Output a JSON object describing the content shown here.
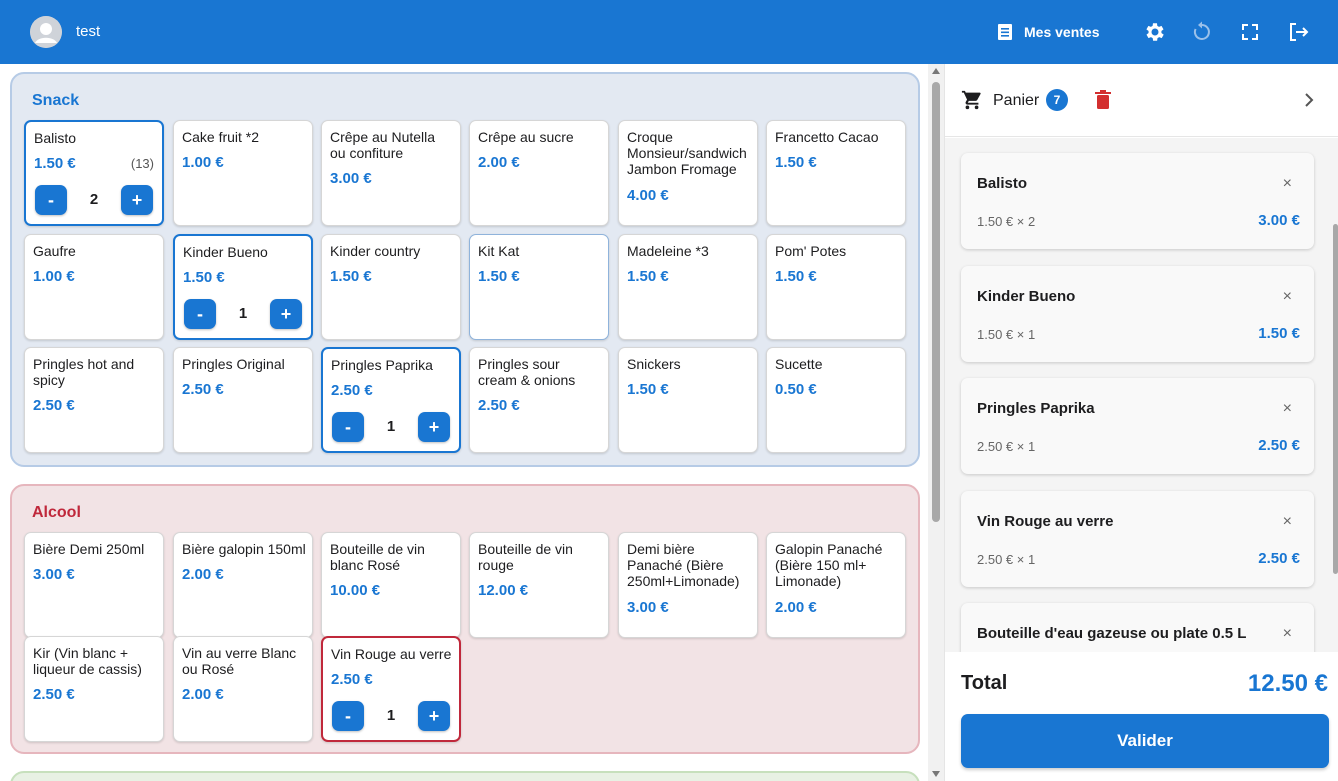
{
  "header": {
    "username": "test",
    "sales_label": "Mes ventes"
  },
  "sections": {
    "snack": {
      "title": "Snack",
      "products": [
        {
          "name": "Balisto",
          "price": "1.50 €",
          "stock": "(13)",
          "qty": "2"
        },
        {
          "name": "Cake fruit *2",
          "price": "1.00 €"
        },
        {
          "name": "Crêpe au Nutella ou confiture",
          "price": "3.00 €"
        },
        {
          "name": "Crêpe au sucre",
          "price": "2.00 €"
        },
        {
          "name": "Croque Monsieur/sandwich Jambon Fromage",
          "price": "4.00 €"
        },
        {
          "name": "Francetto Cacao",
          "price": "1.50 €"
        },
        {
          "name": "Gaufre",
          "price": "1.00 €"
        },
        {
          "name": "Kinder Bueno",
          "price": "1.50 €",
          "qty": "1"
        },
        {
          "name": "Kinder country",
          "price": "1.50 €"
        },
        {
          "name": "Kit Kat",
          "price": "1.50 €"
        },
        {
          "name": "Madeleine *3",
          "price": "1.50 €"
        },
        {
          "name": "Pom' Potes",
          "price": "1.50 €"
        },
        {
          "name": "Pringles hot and spicy",
          "price": "2.50 €"
        },
        {
          "name": "Pringles Original",
          "price": "2.50 €"
        },
        {
          "name": "Pringles Paprika",
          "price": "2.50 €",
          "qty": "1"
        },
        {
          "name": "Pringles sour cream & onions",
          "price": "2.50 €"
        },
        {
          "name": "Snickers",
          "price": "1.50 €"
        },
        {
          "name": "Sucette",
          "price": "0.50 €"
        }
      ]
    },
    "alcool": {
      "title": "Alcool",
      "products": [
        {
          "name": "Bière Demi 250ml",
          "price": "3.00 €"
        },
        {
          "name": "Bière galopin 150ml",
          "price": "2.00 €"
        },
        {
          "name": "Bouteille de vin blanc Rosé",
          "price": "10.00 €"
        },
        {
          "name": "Bouteille de vin rouge",
          "price": "12.00 €"
        },
        {
          "name": "Demi bière Panaché (Bière 250ml+Limonade)",
          "price": "3.00 €"
        },
        {
          "name": "Galopin Panaché (Bière 150 ml+ Limonade)",
          "price": "2.00 €"
        },
        {
          "name": "Kir (Vin blanc + liqueur de cassis)",
          "price": "2.50 €"
        },
        {
          "name": "Vin au verre Blanc ou Rosé",
          "price": "2.00 €"
        },
        {
          "name": "Vin Rouge au verre",
          "price": "2.50 €",
          "qty": "1"
        }
      ]
    }
  },
  "controls": {
    "minus": "-",
    "plus": "+"
  },
  "cart": {
    "title": "Panier",
    "count": "7",
    "items": [
      {
        "name": "Balisto",
        "unit": "1.50 € × 2",
        "total": "3.00 €"
      },
      {
        "name": "Kinder Bueno",
        "unit": "1.50 € × 1",
        "total": "1.50 €"
      },
      {
        "name": "Pringles Paprika",
        "unit": "2.50 € × 1",
        "total": "2.50 €"
      },
      {
        "name": "Vin Rouge au verre",
        "unit": "2.50 € × 1",
        "total": "2.50 €"
      },
      {
        "name": "Bouteille d'eau gazeuse ou plate 0.5 L"
      }
    ],
    "remove_symbol": "×",
    "total_label": "Total",
    "total_value": "12.50 €",
    "validate_label": "Valider"
  },
  "colors": {
    "primary": "#1976d2",
    "danger": "#d32f2f",
    "alcool_accent": "#c0283b"
  }
}
